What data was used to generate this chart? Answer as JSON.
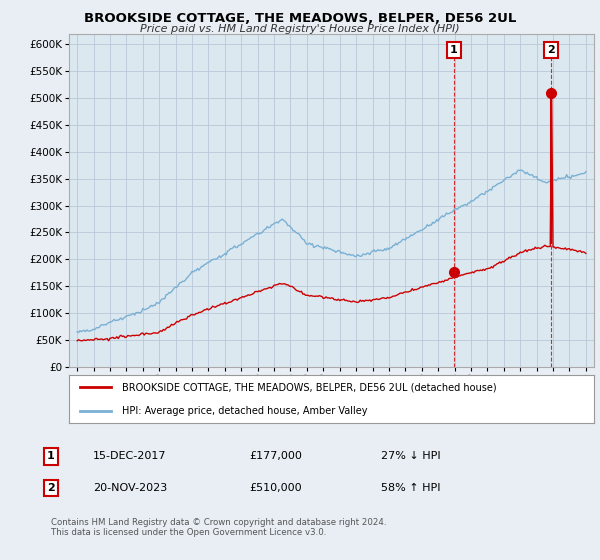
{
  "title": "BROOKSIDE COTTAGE, THE MEADOWS, BELPER, DE56 2UL",
  "subtitle": "Price paid vs. HM Land Registry's House Price Index (HPI)",
  "hpi_label": "HPI: Average price, detached house, Amber Valley",
  "property_label": "BROOKSIDE COTTAGE, THE MEADOWS, BELPER, DE56 2UL (detached house)",
  "hpi_color": "#7ab0d4",
  "property_color": "#cc0000",
  "ylim": [
    0,
    620000
  ],
  "yticks": [
    0,
    50000,
    100000,
    150000,
    200000,
    250000,
    300000,
    350000,
    400000,
    450000,
    500000,
    550000,
    600000
  ],
  "ytick_labels": [
    "£0",
    "£50K",
    "£100K",
    "£150K",
    "£200K",
    "£250K",
    "£300K",
    "£350K",
    "£400K",
    "£450K",
    "£500K",
    "£550K",
    "£600K"
  ],
  "xlim_start": 1994.5,
  "xlim_end": 2026.5,
  "sale1_year_f": 2017.96,
  "sale1_price": 177000,
  "sale2_year_f": 2023.88,
  "sale2_price": 510000,
  "note1_date": "15-DEC-2017",
  "note1_price": "£177,000",
  "note1_hpi": "27% ↓ HPI",
  "note2_date": "20-NOV-2023",
  "note2_price": "£510,000",
  "note2_hpi": "58% ↑ HPI",
  "copyright": "Contains HM Land Registry data © Crown copyright and database right 2024.\nThis data is licensed under the Open Government Licence v3.0.",
  "background_color": "#e8eef4",
  "plot_bg_color": "#dce8f0",
  "grid_color": "#b8c8d8",
  "legend_bg": "#ffffff",
  "label_box_color": "#cc0000"
}
